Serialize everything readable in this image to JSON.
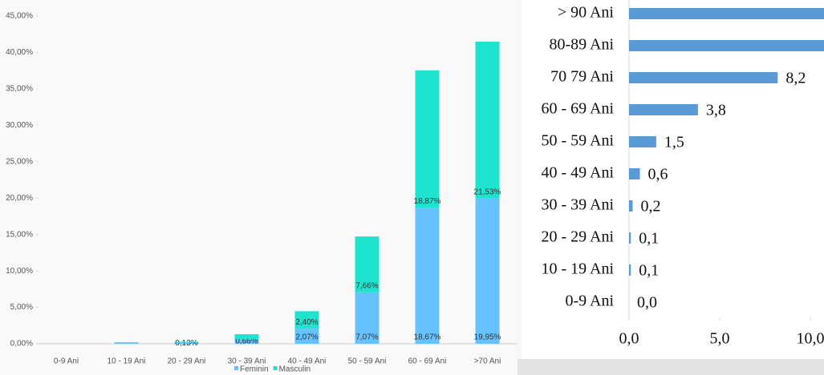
{
  "chart_data": [
    {
      "type": "bar",
      "stacked": true,
      "categories": [
        "0-9 Ani",
        "10 - 19 Ani",
        "20 - 29 Ani",
        "30 - 39 Ani",
        "40 - 49 Ani",
        "50 - 59 Ani",
        "60 - 69 Ani",
        ">70 Ani"
      ],
      "series": [
        {
          "name": "Feminin",
          "color": "#66c2ff",
          "values": [
            0,
            0.1,
            0.13,
            0.66,
            2.07,
            7.07,
            18.67,
            19.95
          ],
          "value_labels": [
            null,
            null,
            "0,13%",
            "0,66%",
            "2,07%",
            "7,07%",
            "18,67%",
            "19,95%"
          ]
        },
        {
          "name": "Masculin",
          "color": "#1de3cf",
          "values": [
            0,
            0.1,
            0.15,
            0.65,
            2.4,
            7.66,
            18.87,
            21.53
          ],
          "value_labels": [
            null,
            null,
            null,
            null,
            "2,40%",
            "7,66%",
            "18,87%",
            "21,53%"
          ]
        }
      ],
      "ylim": [
        0,
        45
      ],
      "yticks": [
        {
          "value": 0,
          "label": "0,00%"
        },
        {
          "value": 5,
          "label": "5,00%"
        },
        {
          "value": 10,
          "label": "10,00%"
        },
        {
          "value": 15,
          "label": "15,00%"
        },
        {
          "value": 20,
          "label": "20,00%"
        },
        {
          "value": 25,
          "label": "25,00%"
        },
        {
          "value": 30,
          "label": "30,00%"
        },
        {
          "value": 35,
          "label": "35,00%"
        },
        {
          "value": 40,
          "label": "40,00%"
        },
        {
          "value": 45,
          "label": "45,00%"
        }
      ],
      "legend": "bottom"
    },
    {
      "type": "barh",
      "categories": [
        "> 90 Ani",
        "80-89 Ani",
        "70 79 Ani",
        "60 - 69 Ani",
        "50 - 59 Ani",
        "40 - 49 Ani",
        "30 - 39 Ani",
        "20 - 29 Ani",
        "10 - 19 Ani",
        "0-9 Ani"
      ],
      "values": [
        11.0,
        11.0,
        8.2,
        3.8,
        1.5,
        0.6,
        0.2,
        0.1,
        0.1,
        0.0
      ],
      "value_labels": [
        null,
        null,
        "8,2",
        "3,8",
        "1,5",
        "0,6",
        "0,2",
        "0,1",
        "0,1",
        "0,0"
      ],
      "color": "#5b9bd5",
      "xlim": [
        0,
        10
      ],
      "xticks": [
        {
          "value": 0,
          "label": "0,0"
        },
        {
          "value": 5,
          "label": "5,0"
        },
        {
          "value": 10,
          "label": "10,0"
        }
      ]
    }
  ]
}
